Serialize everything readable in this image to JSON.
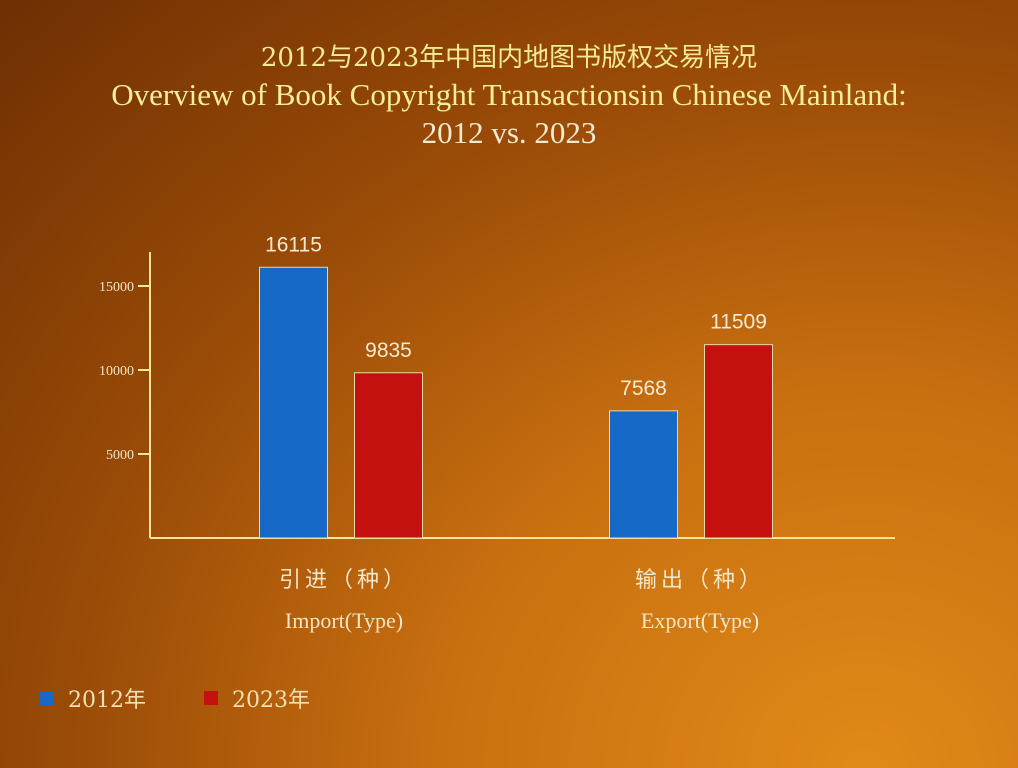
{
  "title": {
    "cn": "2012与2023年中国内地图书版权交易情况",
    "en": "Overview of Book Copyright Transactionsin Chinese Mainland:",
    "sub": "2012 vs. 2023"
  },
  "colors": {
    "series_2012": "#1769c8",
    "series_2023": "#c4100f",
    "axis": "#f4e79a",
    "text": "#f2e6c8"
  },
  "categories": [
    {
      "cn": "引进（种）",
      "en": "Import(Type)"
    },
    {
      "cn": "输出（种）",
      "en": "Export(Type)"
    }
  ],
  "legend": [
    {
      "label": "2012年"
    },
    {
      "label": "2023年"
    }
  ],
  "chart_data": {
    "type": "bar",
    "categories": [
      "Import(Type)",
      "Export(Type)"
    ],
    "series": [
      {
        "name": "2012年",
        "values": [
          16115,
          7568
        ]
      },
      {
        "name": "2023年",
        "values": [
          9835,
          11509
        ]
      }
    ],
    "yticks": [
      5000,
      10000,
      15000
    ],
    "ylim": [
      0,
      17000
    ],
    "grid": false,
    "legend_position": "bottom-left"
  }
}
